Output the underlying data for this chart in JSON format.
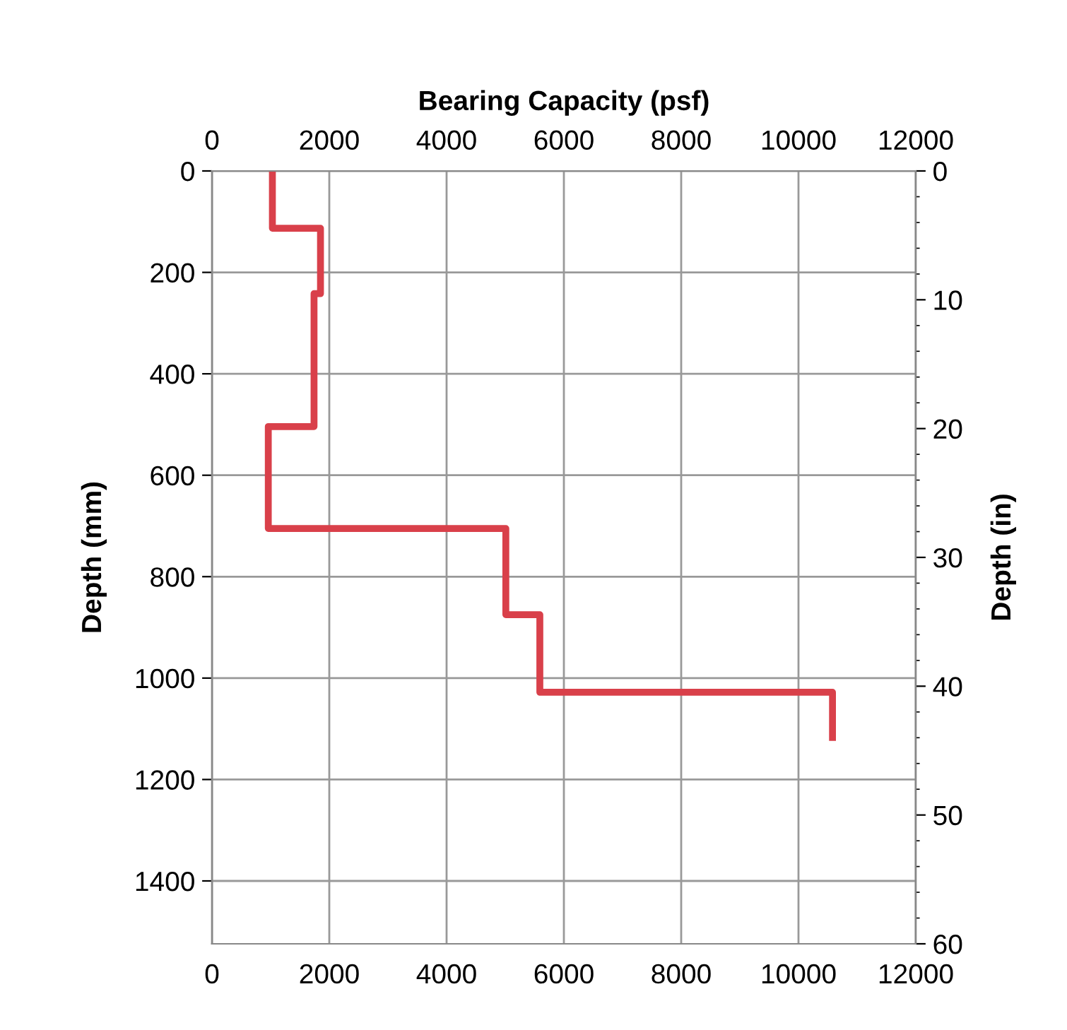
{
  "chart_data": {
    "type": "line",
    "x2label": "Bearing Capacity (psf)",
    "ylabel": "Depth (mm)",
    "y2label": "Depth (in)",
    "series": [
      {
        "color": "#d9404a",
        "x": [
          1030,
          1030,
          1850,
          1850,
          1740,
          1740,
          960,
          960,
          5010,
          5010,
          5590,
          5590,
          10580,
          10580
        ],
        "values": [
          0,
          113,
          113,
          242,
          242,
          504,
          504,
          705,
          705,
          875,
          875,
          1028,
          1028,
          1117
        ]
      }
    ],
    "xlim": [
      0,
      12000
    ],
    "xticks": [
      0,
      2000,
      4000,
      6000,
      8000,
      10000,
      12000
    ],
    "x2lim": [
      0,
      12000
    ],
    "x2ticks": [
      0,
      2000,
      4000,
      6000,
      8000,
      10000,
      12000
    ],
    "ylim": [
      1524,
      0
    ],
    "yticks": [
      0,
      200,
      400,
      600,
      800,
      1000,
      1200,
      1400
    ],
    "y2lim": [
      60,
      0
    ],
    "y2ticks": [
      0,
      10,
      20,
      30,
      40,
      50,
      60
    ],
    "grid": true,
    "marker": "none",
    "line_style": "solid"
  }
}
